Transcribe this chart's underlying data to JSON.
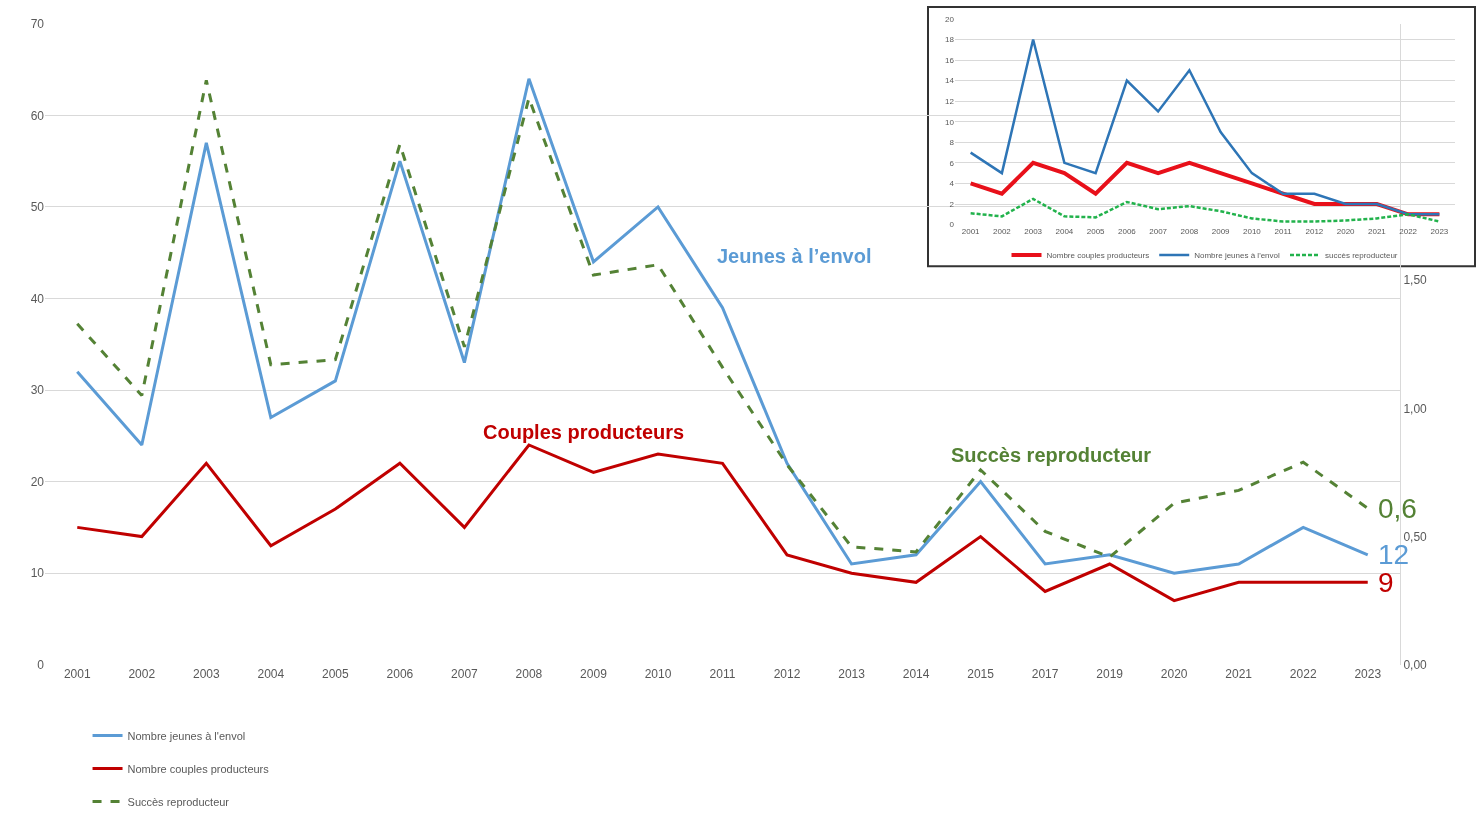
{
  "chart_data": [
    {
      "type": "line",
      "categories": [
        "2001",
        "2002",
        "2003",
        "2004",
        "2005",
        "2006",
        "2007",
        "2008",
        "2009",
        "2010",
        "2011",
        "2012",
        "2013",
        "2014",
        "2015",
        "2017",
        "2019",
        "2020",
        "2021",
        "2022",
        "2023"
      ],
      "series": [
        {
          "name": "Nombre jeunes à l'envol",
          "color": "#5b9bd5",
          "line_style": "solid",
          "values": [
            32,
            24,
            57,
            27,
            31,
            55,
            33,
            64,
            44,
            50,
            39,
            22,
            11,
            12,
            20,
            11,
            12,
            10,
            11,
            15,
            12
          ],
          "value_labels": [
            null,
            null,
            null,
            null,
            null,
            null,
            null,
            null,
            null,
            null,
            null,
            null,
            null,
            null,
            null,
            null,
            null,
            null,
            null,
            null,
            "12"
          ]
        },
        {
          "name": "Nombre couples producteurs",
          "color": "#c00000",
          "line_style": "solid",
          "values": [
            15,
            14,
            22,
            13,
            17,
            22,
            15,
            24,
            21,
            23,
            22,
            12,
            10,
            9,
            14,
            8,
            11,
            7,
            9,
            9,
            9
          ],
          "value_labels": [
            null,
            null,
            null,
            null,
            null,
            null,
            null,
            null,
            null,
            null,
            null,
            null,
            null,
            null,
            null,
            null,
            null,
            null,
            null,
            null,
            "9"
          ]
        },
        {
          "name": "Succès reproducteur",
          "color": "#548235",
          "line_style": "dashed",
          "axis": "y2",
          "values": [
            1.33,
            1.05,
            2.28,
            1.17,
            1.19,
            2.03,
            1.24,
            2.21,
            1.52,
            1.56,
            1.16,
            0.78,
            0.46,
            0.44,
            0.76,
            0.52,
            0.42,
            0.63,
            0.68,
            0.79,
            0.61
          ],
          "value_labels": [
            null,
            null,
            null,
            null,
            null,
            null,
            null,
            null,
            null,
            null,
            null,
            null,
            null,
            null,
            null,
            null,
            null,
            null,
            null,
            null,
            "0,6"
          ]
        }
      ],
      "ylim": [
        0,
        70
      ],
      "yticks": [
        0,
        10,
        20,
        30,
        40,
        50,
        60,
        70
      ],
      "y2lim": [
        0,
        2.5
      ],
      "y2ticks": [
        {
          "value": 0,
          "label": "0,00"
        },
        {
          "value": 0.5,
          "label": "0,50"
        },
        {
          "value": 1,
          "label": "1,00"
        },
        {
          "value": 1.5,
          "label": "1,50"
        }
      ],
      "annotations": [
        "Jeunes à l’envol",
        "Couples producteurs",
        "Succès reproducteur"
      ],
      "grid": "y",
      "legend": "bottom left"
    },
    {
      "type": "line",
      "categories": [
        "2001",
        "2002",
        "2003",
        "2004",
        "2005",
        "2006",
        "2007",
        "2008",
        "2009",
        "2010",
        "2011",
        "2012",
        "2020",
        "2021",
        "2022",
        "2023"
      ],
      "series": [
        {
          "name": "Nombre couples producteurs",
          "color": "#e8101a",
          "line_style": "solid",
          "values": [
            4,
            3,
            6,
            5,
            3,
            6,
            5,
            6,
            5,
            4,
            3,
            2,
            2,
            2,
            1,
            1
          ]
        },
        {
          "name": "Nombre jeunes à l'envol",
          "color": "#2e75b6",
          "line_style": "solid",
          "values": [
            7,
            5,
            18,
            6,
            5,
            14,
            11,
            15,
            9,
            5,
            3,
            3,
            2,
            2,
            1,
            1
          ]
        },
        {
          "name": "succès reproducteur",
          "color": "#22b24c",
          "line_style": "dashed",
          "values": [
            1.1,
            0.8,
            2.5,
            0.8,
            0.7,
            2.2,
            1.5,
            1.8,
            1.3,
            0.6,
            0.3,
            0.3,
            0.4,
            0.6,
            1.0,
            0.3
          ]
        }
      ],
      "ylim": [
        0,
        20
      ],
      "yticks": [
        0,
        2,
        4,
        6,
        8,
        10,
        12,
        14,
        16,
        18,
        20
      ],
      "grid": "y",
      "legend": "bottom"
    }
  ]
}
